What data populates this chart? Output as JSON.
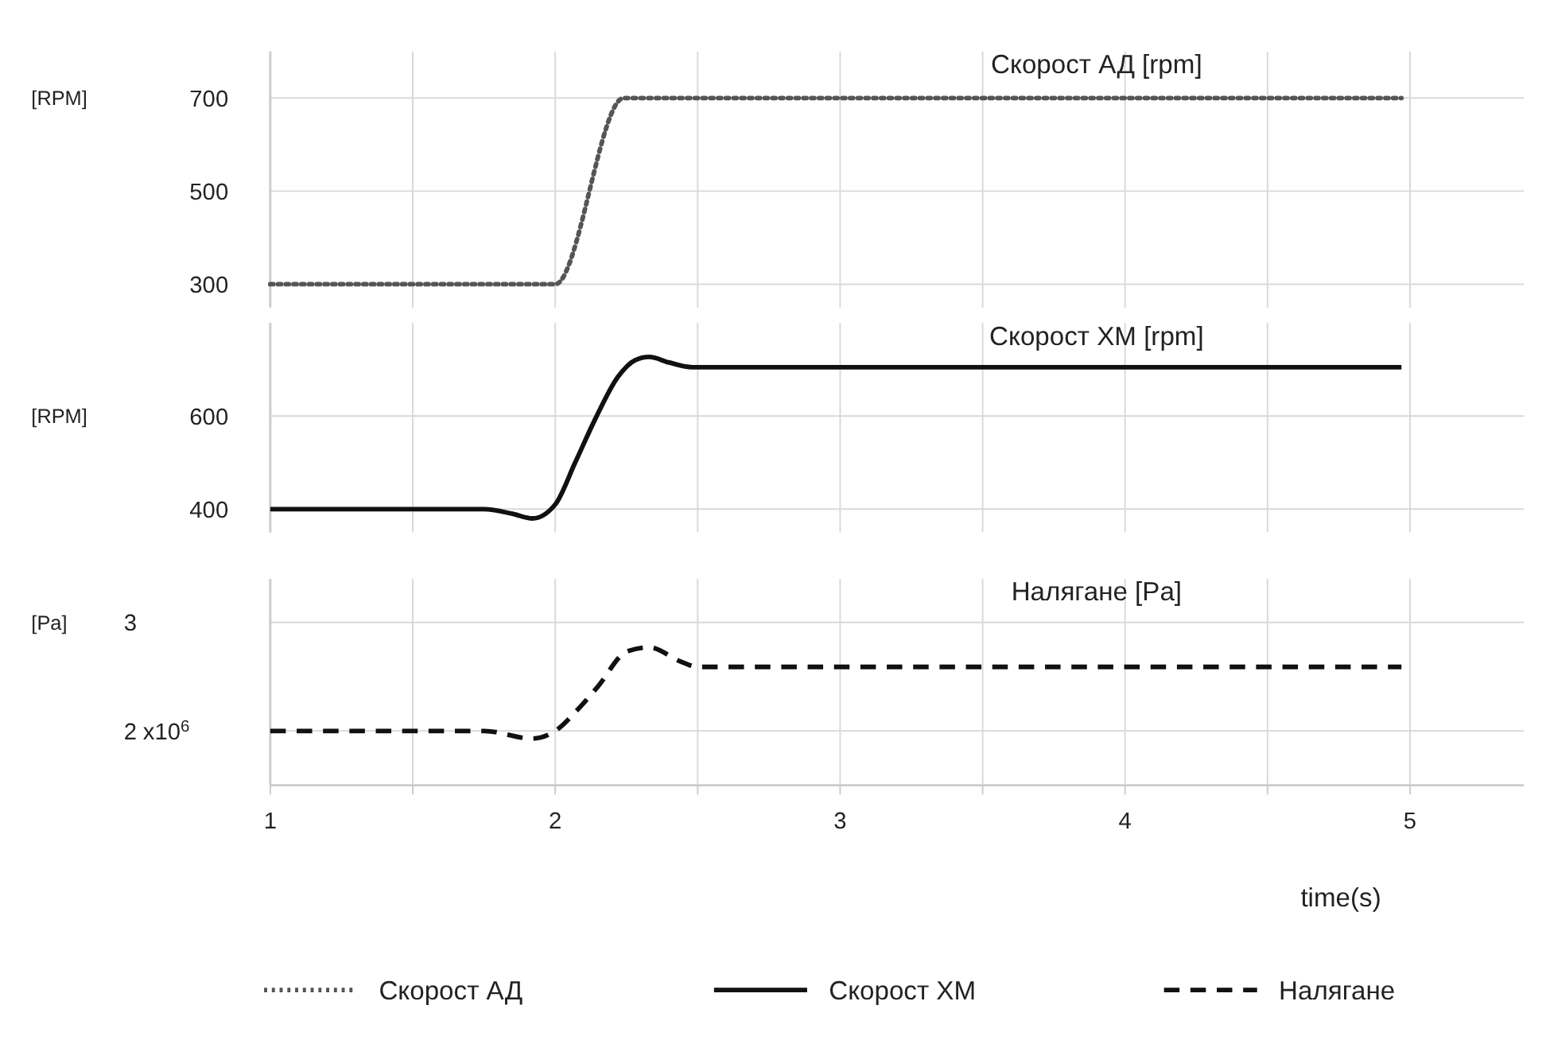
{
  "chart_data": [
    {
      "type": "line",
      "title": "Скорост АД [rpm]",
      "ylabel": "[RPM]",
      "x": [
        1,
        2.0,
        2.24,
        4.97
      ],
      "xlim": [
        1,
        5.4
      ],
      "xticks": [
        1,
        {
          "value": 1.5,
          "label": null
        },
        2,
        {
          "value": 2.5,
          "label": null
        },
        3,
        {
          "value": 3.5,
          "label": null
        },
        4,
        {
          "value": 4.5,
          "label": null
        },
        5
      ],
      "ylim": [
        250,
        800
      ],
      "yticks": [
        300,
        500,
        700
      ],
      "grid": true,
      "tick_labels": "y",
      "legend": "bottom",
      "line_style": "dotted",
      "series": [
        {
          "name": "Скорост АД",
          "color": "#555555",
          "values": [
            300,
            300,
            700,
            700
          ]
        }
      ]
    },
    {
      "type": "line",
      "title": "Скорост ХМ [rpm]",
      "ylabel": "[RPM]",
      "x": [
        1,
        1.75,
        1.85,
        1.92,
        2.0,
        2.07,
        2.14,
        2.22,
        2.28,
        2.33,
        2.4,
        2.48,
        4.97
      ],
      "xlim": [
        1,
        5.4
      ],
      "xticks": [
        1,
        {
          "value": 1.5,
          "label": null
        },
        2,
        {
          "value": 2.5,
          "label": null
        },
        3,
        {
          "value": 3.5,
          "label": null
        },
        4,
        {
          "value": 4.5,
          "label": null
        },
        5
      ],
      "ylim": [
        350,
        800
      ],
      "yticks": [
        400,
        600
      ],
      "grid": true,
      "tick_labels": "y",
      "legend": "bottom",
      "line_style": "solid",
      "series": [
        {
          "name": "Скорост ХМ",
          "color": "#111111",
          "values": [
            400,
            400,
            390,
            380,
            410,
            500,
            593,
            684,
            720,
            727,
            715,
            705,
            705
          ]
        }
      ]
    },
    {
      "type": "line",
      "title": "Налягане [Pa]",
      "ylabel": "[Pa]",
      "xlabel": "time(s)",
      "x": [
        1,
        1.75,
        1.92,
        2.0,
        2.08,
        2.15,
        2.25,
        2.33,
        2.44,
        2.5,
        4.97
      ],
      "xlim": [
        1,
        5.4
      ],
      "xticks": [
        1,
        {
          "value": 1.5,
          "label": null
        },
        2,
        {
          "value": 2.5,
          "label": null
        },
        3,
        {
          "value": 3.5,
          "label": null
        },
        4,
        {
          "value": 4.5,
          "label": null
        },
        5
      ],
      "ylim": [
        1.5,
        3.4
      ],
      "yticks": [
        2,
        3
      ],
      "annotations": [
        "x10$^{6}$"
      ],
      "grid": true,
      "legend": "bottom",
      "line_style": "dashed",
      "series": [
        {
          "name": "Налягане",
          "color": "#111111",
          "values": [
            2,
            2,
            1.93,
            2,
            2.2,
            2.41,
            2.73,
            2.77,
            2.64,
            2.59,
            2.59
          ]
        }
      ]
    }
  ]
}
